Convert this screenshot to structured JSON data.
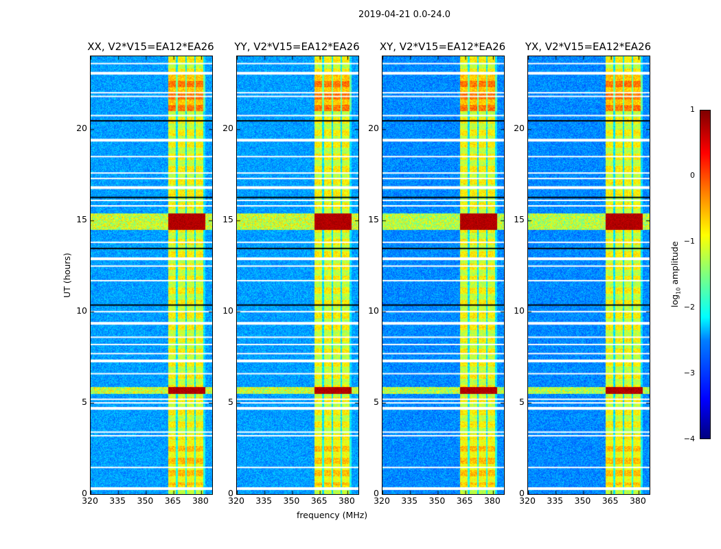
{
  "chart_data": {
    "type": "heatmap",
    "title": "2019-04-21 0.0-24.0",
    "xlabel": "frequency (MHz)",
    "ylabel": "UT (hours)",
    "xlim": [
      320,
      386
    ],
    "ylim": [
      0,
      24
    ],
    "xticks": [
      "320",
      "335",
      "350",
      "365",
      "380"
    ],
    "yticks": [
      "0",
      "5",
      "10",
      "15",
      "20"
    ],
    "panels": [
      {
        "title": "XX, V2*V15=EA12*EA26"
      },
      {
        "title": "YY, V2*V15=EA12*EA26"
      },
      {
        "title": "XY, V2*V15=EA12*EA26"
      },
      {
        "title": "YX, V2*V15=EA12*EA26"
      }
    ],
    "colorbar": {
      "label_prefix": "log",
      "label_sub": "10",
      "label_suffix": " amplitude",
      "colormap": "jet",
      "range": [
        -4,
        1
      ],
      "ticks": [
        "1",
        "0",
        "−1",
        "−2",
        "−3",
        "−4"
      ]
    },
    "rfi_band_mhz": [
      362,
      382
    ],
    "strong_rfi_times_h": [
      [
        14.5,
        15.4
      ],
      [
        5.5,
        5.9
      ]
    ],
    "flagged_times_h": [
      0.3,
      1.46,
      3.2,
      3.4,
      4.7,
      5.0,
      5.2,
      6.6,
      7.3,
      7.7,
      8.2,
      8.6,
      9.36,
      10.0,
      11.7,
      12.5,
      12.9,
      13.8,
      15.8,
      16.1,
      16.8,
      17.3,
      17.6,
      18.5,
      19.4,
      20.75,
      21.8,
      22.0,
      23.07,
      23.6
    ]
  }
}
